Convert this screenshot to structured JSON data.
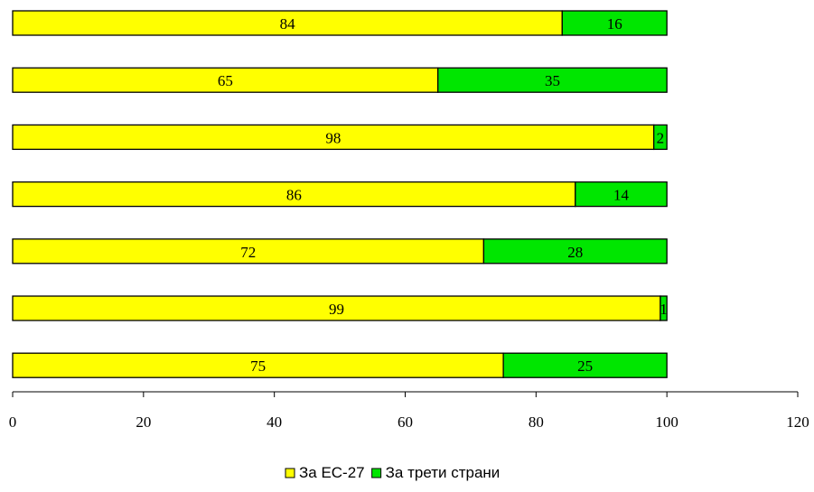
{
  "chart_data": {
    "type": "bar",
    "orientation": "horizontal",
    "stacked": true,
    "categories": [
      "",
      "",
      "",
      "",
      "",
      "",
      ""
    ],
    "series": [
      {
        "name": "За ЕС-27",
        "color": "#ffff00",
        "values": [
          84,
          65,
          98,
          86,
          72,
          99,
          75
        ]
      },
      {
        "name": "За трети страни",
        "color": "#00e600",
        "values": [
          16,
          35,
          2,
          14,
          28,
          1,
          25
        ]
      }
    ],
    "title": "",
    "xlabel": "",
    "ylabel": "",
    "xlim": [
      0,
      120
    ],
    "xticks": [
      "0",
      "20",
      "40",
      "60",
      "80",
      "100",
      "120"
    ],
    "grid": false,
    "legend": "bottom-center"
  }
}
